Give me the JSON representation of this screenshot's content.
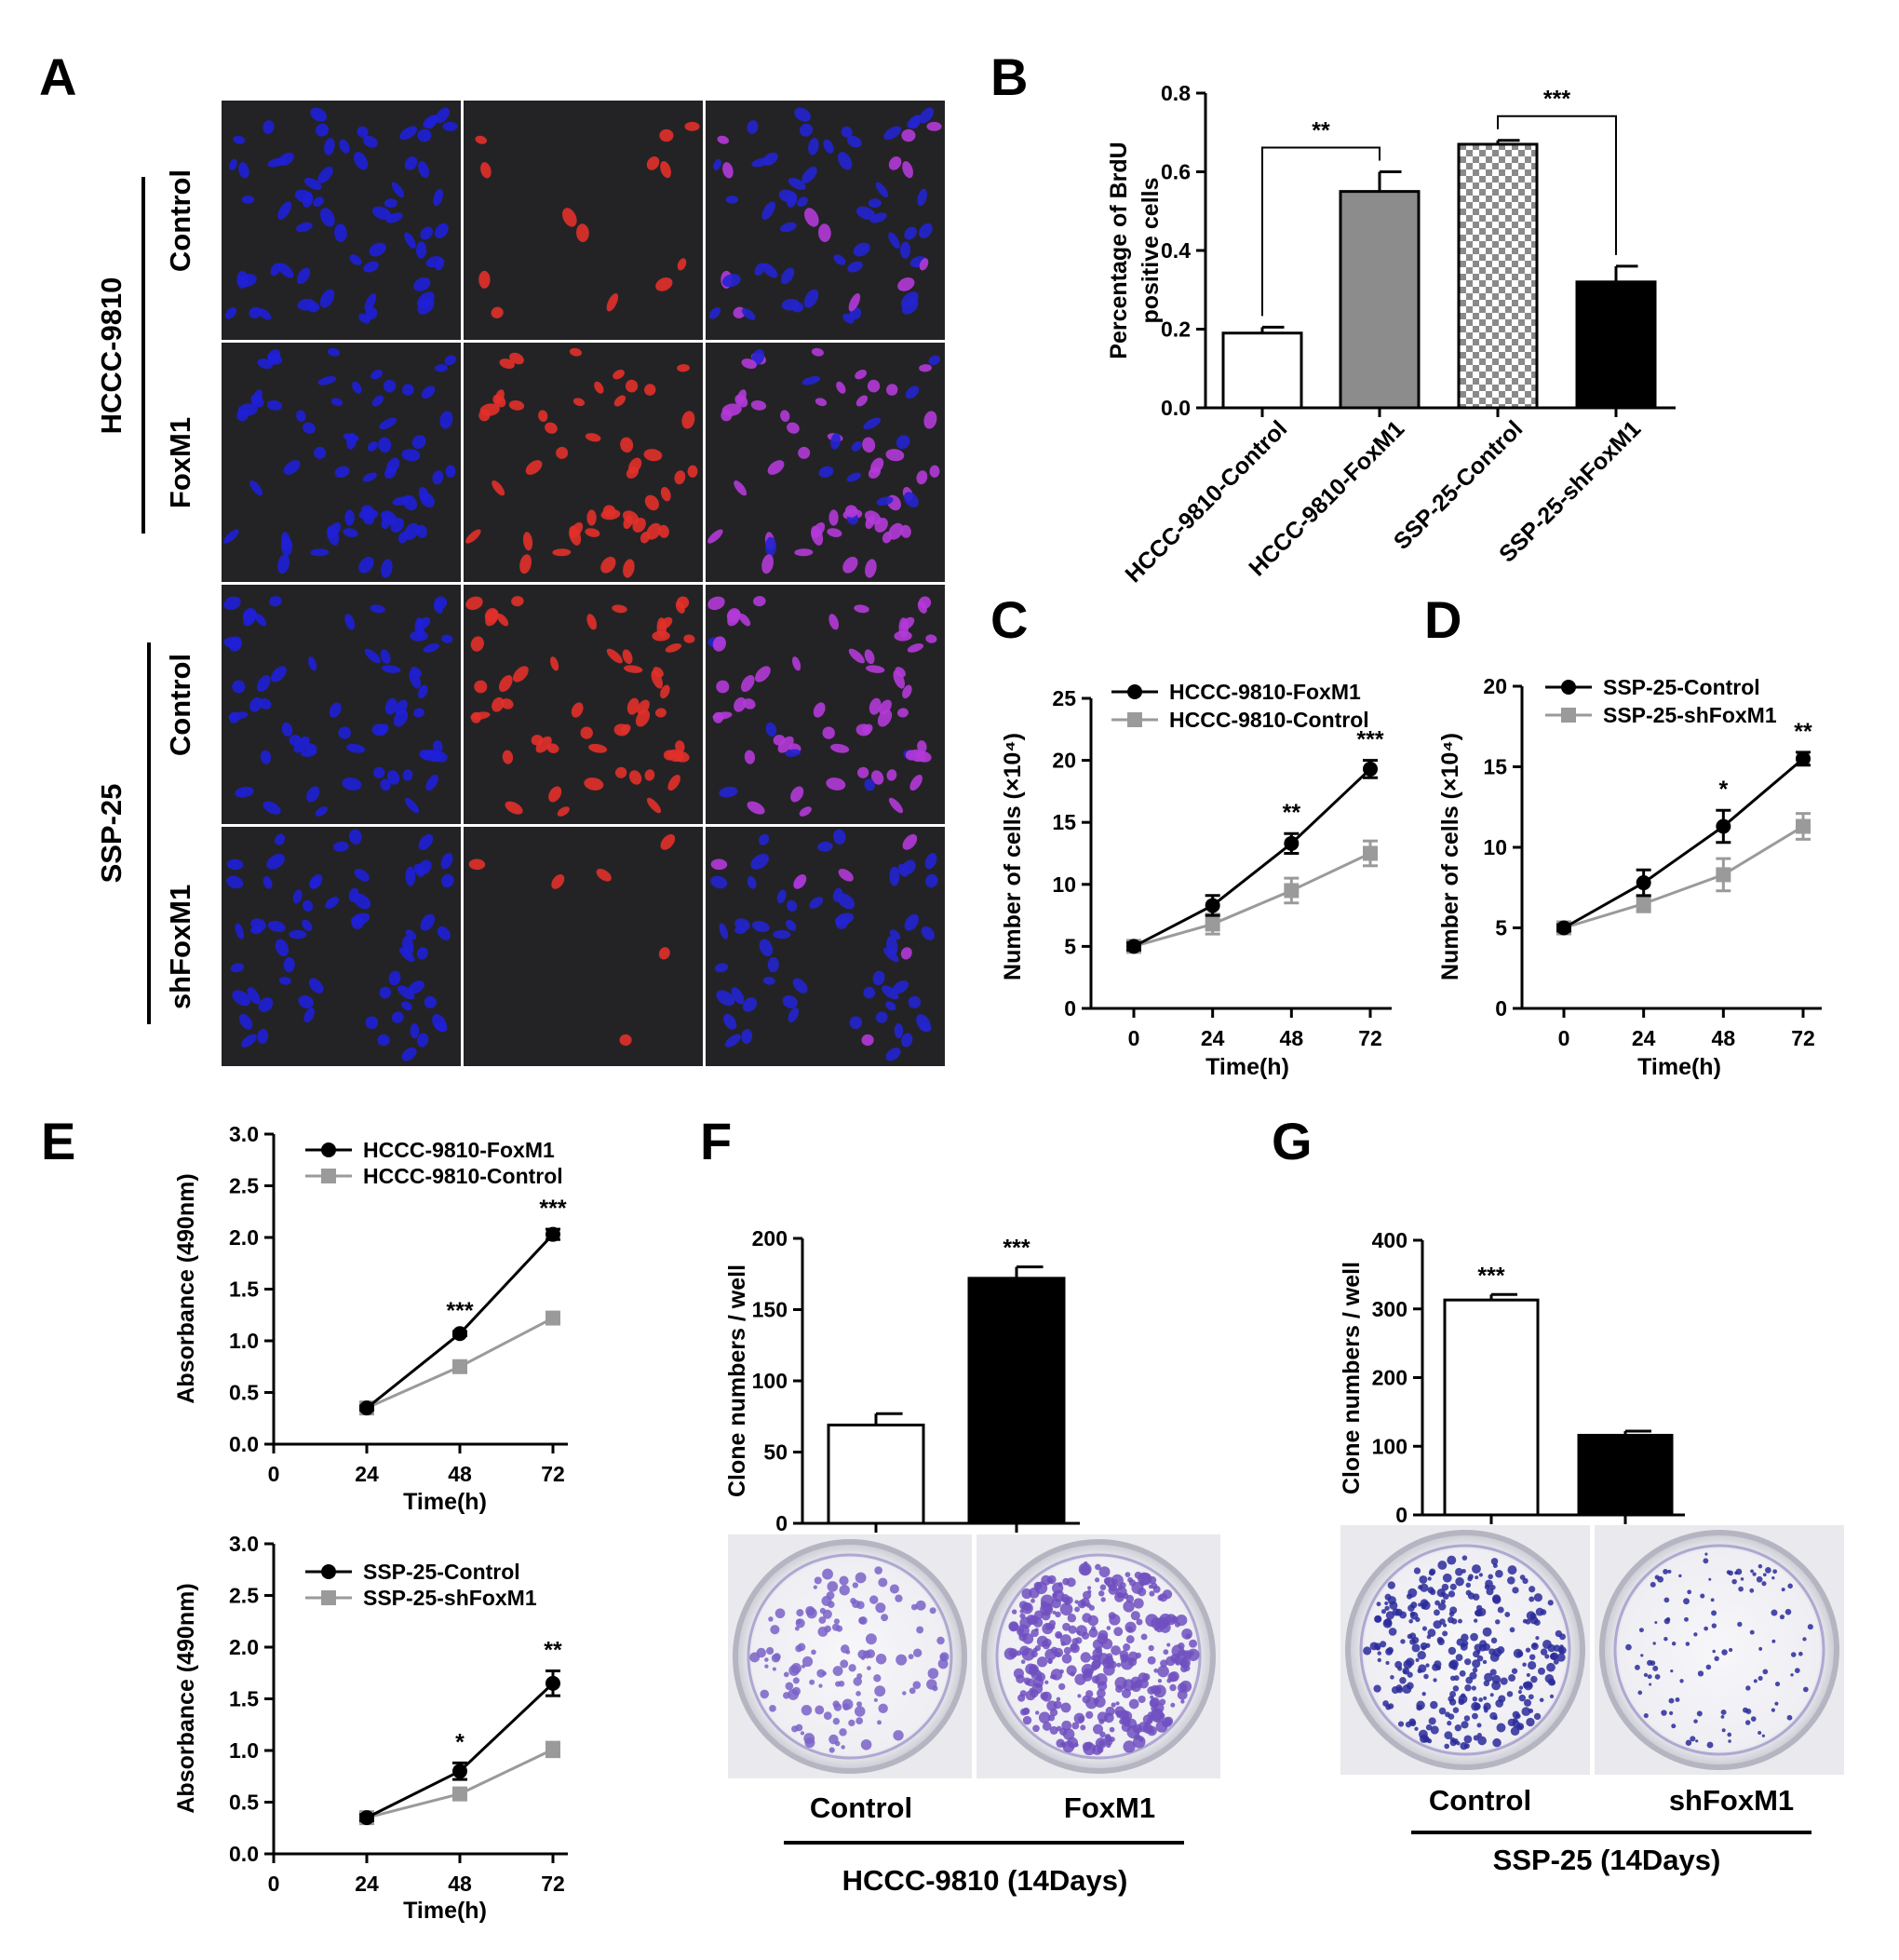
{
  "figure": {
    "panel_letters": [
      "A",
      "B",
      "C",
      "D",
      "E",
      "F",
      "G"
    ],
    "panel_a": {
      "group_labels": [
        "HCCC-9810",
        "SSP-25"
      ],
      "row_labels": [
        "Control",
        "FoxM1",
        "Control",
        "shFoxM1"
      ],
      "red_intensity": [
        0.2,
        0.65,
        0.85,
        0.15
      ]
    },
    "panel_f": {
      "groups": [
        "Control",
        "FoxM1"
      ],
      "caption": "HCCC-9810 (14Days)"
    },
    "panel_g": {
      "groups": [
        "Control",
        "shFoxM1"
      ],
      "caption": "SSP-25 (14Days)"
    }
  },
  "chart_data": [
    {
      "panel": "B",
      "type": "bar",
      "ylabel_lines": [
        "Percentage of BrdU",
        "positive cells"
      ],
      "ylim": [
        0,
        0.8
      ],
      "yticks": [
        "0.0",
        "0.2",
        "0.4",
        "0.6",
        "0.8"
      ],
      "categories": [
        "HCCC-9810-Control",
        "HCCC-9810-FoxM1",
        "SSP-25-Control",
        "SSP-25-shFoxM1"
      ],
      "values": [
        0.19,
        0.55,
        0.67,
        0.32
      ],
      "errors": [
        0.015,
        0.05,
        0.01,
        0.04
      ],
      "fills": [
        "white",
        "gray",
        "checker",
        "black"
      ],
      "significance": [
        {
          "between": [
            0,
            1
          ],
          "label": "**"
        },
        {
          "between": [
            2,
            3
          ],
          "label": "***"
        }
      ]
    },
    {
      "panel": "C",
      "type": "line",
      "xlabel": "Time(h)",
      "ylabel": "Number of cells (×10⁴)",
      "x": [
        0,
        24,
        48,
        72
      ],
      "xticks": [
        "0",
        "24",
        "48",
        "72"
      ],
      "ylim": [
        0,
        25
      ],
      "yticks": [
        "0",
        "5",
        "10",
        "15",
        "20",
        "25"
      ],
      "series": [
        {
          "name": "HCCC-9810-FoxM1",
          "values": [
            5,
            8.3,
            13.3,
            19.3
          ],
          "errors": [
            0.3,
            0.8,
            0.8,
            0.7
          ],
          "color": "#000000",
          "marker": "circle"
        },
        {
          "name": "HCCC-9810-Control",
          "values": [
            5,
            6.8,
            9.5,
            12.5
          ],
          "errors": [
            0.3,
            0.8,
            1.0,
            1.0
          ],
          "color": "#9a9a9a",
          "marker": "square"
        }
      ],
      "annotations": [
        {
          "x": 48,
          "label": "**"
        },
        {
          "x": 72,
          "label": "***"
        }
      ]
    },
    {
      "panel": "D",
      "type": "line",
      "xlabel": "Time(h)",
      "ylabel": "Number of cells (×10⁴)",
      "x": [
        0,
        24,
        48,
        72
      ],
      "xticks": [
        "0",
        "24",
        "48",
        "72"
      ],
      "ylim": [
        0,
        20
      ],
      "yticks": [
        "0",
        "5",
        "10",
        "15",
        "20"
      ],
      "series": [
        {
          "name": "SSP-25-Control",
          "values": [
            5,
            7.8,
            11.3,
            15.5
          ],
          "errors": [
            0.2,
            0.8,
            1.0,
            0.4
          ],
          "color": "#000000",
          "marker": "circle"
        },
        {
          "name": "SSP-25-shFoxM1",
          "values": [
            5,
            6.5,
            8.3,
            11.3
          ],
          "errors": [
            0.2,
            0.5,
            1.0,
            0.8
          ],
          "color": "#9a9a9a",
          "marker": "square"
        }
      ],
      "annotations": [
        {
          "x": 48,
          "label": "*"
        },
        {
          "x": 72,
          "label": "**"
        }
      ]
    },
    {
      "panel": "E-top",
      "type": "line",
      "xlabel": "Time(h)",
      "ylabel": "Absorbance (490nm)",
      "xlim": [
        0,
        72
      ],
      "xticks": [
        "0",
        "24",
        "48",
        "72"
      ],
      "ylim": [
        0,
        3
      ],
      "yticks": [
        "0.0",
        "0.5",
        "1.0",
        "1.5",
        "2.0",
        "2.5",
        "3.0"
      ],
      "x": [
        24,
        48,
        72
      ],
      "series": [
        {
          "name": "HCCC-9810-FoxM1",
          "values": [
            0.35,
            1.07,
            2.03
          ],
          "errors": [
            0.02,
            0.02,
            0.05
          ],
          "color": "#000000",
          "marker": "circle"
        },
        {
          "name": "HCCC-9810-Control",
          "values": [
            0.35,
            0.75,
            1.22
          ],
          "errors": [
            0.02,
            0.02,
            0.04
          ],
          "color": "#9a9a9a",
          "marker": "square"
        }
      ],
      "annotations": [
        {
          "x": 48,
          "label": "***"
        },
        {
          "x": 72,
          "label": "***"
        }
      ]
    },
    {
      "panel": "E-bottom",
      "type": "line",
      "xlabel": "Time(h)",
      "ylabel": "Absorbance (490nm)",
      "xlim": [
        0,
        72
      ],
      "xticks": [
        "0",
        "24",
        "48",
        "72"
      ],
      "ylim": [
        0,
        3
      ],
      "yticks": [
        "0.0",
        "0.5",
        "1.0",
        "1.5",
        "2.0",
        "2.5",
        "3.0"
      ],
      "x": [
        24,
        48,
        72
      ],
      "series": [
        {
          "name": "SSP-25-Control",
          "values": [
            0.35,
            0.8,
            1.65
          ],
          "errors": [
            0.03,
            0.08,
            0.12
          ],
          "color": "#000000",
          "marker": "circle"
        },
        {
          "name": "SSP-25-shFoxM1",
          "values": [
            0.35,
            0.58,
            1.01
          ],
          "errors": [
            0.03,
            0.05,
            0.07
          ],
          "color": "#9a9a9a",
          "marker": "square"
        }
      ],
      "annotations": [
        {
          "x": 48,
          "label": "*"
        },
        {
          "x": 72,
          "label": "**"
        }
      ]
    },
    {
      "panel": "F",
      "type": "bar",
      "ylabel": "Clone numbers / well",
      "ylim": [
        0,
        200
      ],
      "yticks": [
        "0",
        "50",
        "100",
        "150",
        "200"
      ],
      "categories": [
        "Control",
        "FoxM1"
      ],
      "values": [
        69,
        172
      ],
      "errors": [
        8,
        8
      ],
      "fills": [
        "white",
        "black"
      ],
      "annotations": [
        {
          "bar": 1,
          "label": "***"
        }
      ]
    },
    {
      "panel": "G",
      "type": "bar",
      "ylabel": "Clone numbers / well",
      "ylim": [
        0,
        400
      ],
      "yticks": [
        "0",
        "100",
        "200",
        "300",
        "400"
      ],
      "categories": [
        "Control",
        "shFoxM1"
      ],
      "values": [
        313,
        116
      ],
      "errors": [
        8,
        6
      ],
      "fills": [
        "white",
        "black"
      ],
      "annotations": [
        {
          "bar": 0,
          "label": "***"
        }
      ]
    }
  ]
}
